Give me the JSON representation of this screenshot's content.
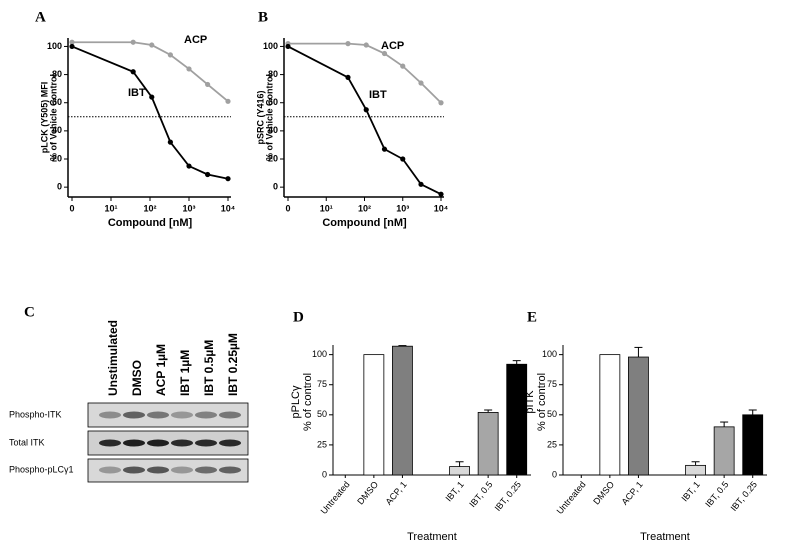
{
  "chart_data": [
    {
      "type": "line",
      "panel": "A",
      "xlabel": "Compound [nM]",
      "ylabel": [
        "pLCK (Y505) MFI",
        "% of Vehicle Control"
      ],
      "xscale": "log",
      "x": [
        1,
        37,
        111,
        333,
        1000,
        3000,
        10000
      ],
      "xlim": [
        1,
        10000
      ],
      "xticks": [
        {
          "value": 1,
          "label": "0"
        },
        {
          "value": 10,
          "label": "10¹"
        },
        {
          "value": 100,
          "label": "10²"
        },
        {
          "value": 1000,
          "label": "10³"
        },
        {
          "value": 10000,
          "label": "10⁴"
        }
      ],
      "ylim": [
        -7,
        106
      ],
      "yticks": [
        0,
        20,
        40,
        60,
        80,
        100
      ],
      "reference_line": 50,
      "series": [
        {
          "name": "ACP",
          "color": "#a0a0a0",
          "values": [
            103,
            103,
            101,
            94,
            84,
            73,
            61
          ]
        },
        {
          "name": "IBT",
          "color": "#000000",
          "values": [
            100,
            82,
            64,
            32,
            15,
            9,
            6
          ]
        }
      ]
    },
    {
      "type": "line",
      "panel": "B",
      "xlabel": "Compound [nM]",
      "ylabel": [
        "pSRC (Y416)",
        "% of Vehicle Control"
      ],
      "xscale": "log",
      "x": [
        1,
        37,
        111,
        333,
        1000,
        3000,
        10000
      ],
      "xlim": [
        1,
        10000
      ],
      "xticks": [
        {
          "value": 1,
          "label": "0"
        },
        {
          "value": 10,
          "label": "10¹"
        },
        {
          "value": 100,
          "label": "10²"
        },
        {
          "value": 1000,
          "label": "10³"
        },
        {
          "value": 10000,
          "label": "10⁴"
        }
      ],
      "ylim": [
        -7,
        106
      ],
      "yticks": [
        0,
        20,
        40,
        60,
        80,
        100
      ],
      "reference_line": 50,
      "series": [
        {
          "name": "ACP",
          "color": "#a0a0a0",
          "values": [
            102,
            102,
            101,
            95,
            86,
            74,
            60
          ]
        },
        {
          "name": "IBT",
          "color": "#000000",
          "values": [
            100,
            78,
            55,
            27,
            20,
            2,
            -5
          ]
        }
      ]
    },
    {
      "type": "bar",
      "panel": "D",
      "xlabel": "Treatment",
      "ylabel": [
        "pPLCγ",
        "% of control"
      ],
      "categories": [
        "Untreated",
        "DMSO",
        "ACP, 1",
        null,
        "IBT, 1",
        "IBT, 0.5",
        "IBT, 0.25"
      ],
      "values": [
        0,
        100,
        107,
        null,
        7,
        52,
        92
      ],
      "errors": [
        0,
        0,
        0.5,
        null,
        4,
        2,
        3
      ],
      "colors": [
        "#ffffff",
        "#ffffff",
        "#7f7f7f",
        null,
        "#d9d9d9",
        "#a6a6a6",
        "#000000"
      ],
      "ylim": [
        0,
        108
      ],
      "yticks": [
        0,
        25,
        50,
        75,
        100
      ]
    },
    {
      "type": "bar",
      "panel": "E",
      "xlabel": "Treatment",
      "ylabel": [
        "pITK",
        "% of control"
      ],
      "categories": [
        "Untreated",
        "DMSO",
        "ACP, 1",
        null,
        "IBT, 1",
        "IBT, 0.5",
        "IBT, 0.25"
      ],
      "values": [
        0,
        100,
        98,
        null,
        8,
        40,
        50
      ],
      "errors": [
        0,
        0,
        8,
        null,
        3,
        4,
        4
      ],
      "colors": [
        "#ffffff",
        "#ffffff",
        "#7f7f7f",
        null,
        "#d9d9d9",
        "#a6a6a6",
        "#000000"
      ],
      "ylim": [
        0,
        108
      ],
      "yticks": [
        0,
        25,
        50,
        75,
        100
      ]
    }
  ],
  "blot": {
    "panel": "C",
    "lanes": [
      "Unstimulated",
      "DMSO",
      "ACP 1µM",
      "IBT 1µM",
      "IBT 0.5µM",
      "IBT 0.25µM"
    ],
    "rows": [
      "Phospho-ITK",
      "Total ITK",
      "Phospho-pLCγ1"
    ]
  }
}
